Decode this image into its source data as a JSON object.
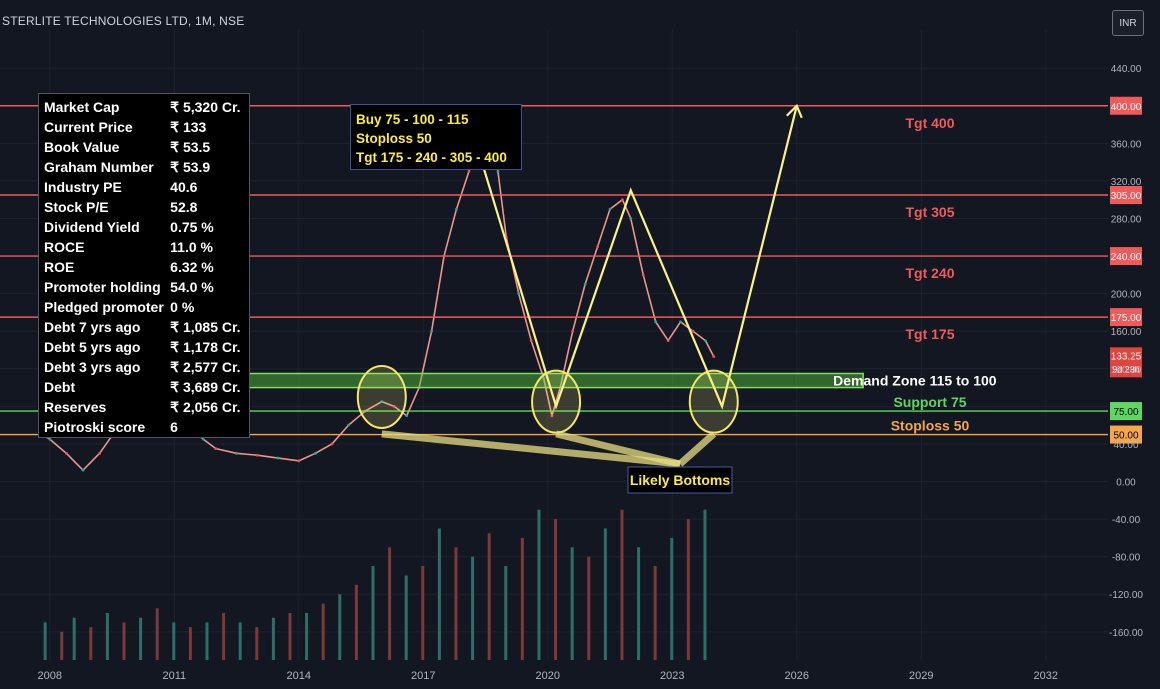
{
  "header": {
    "title": "STERLITE TECHNOLOGIES LTD, 1M, NSE",
    "currency": "INR"
  },
  "fundamentals": [
    {
      "label": "Market Cap",
      "value": "₹ 5,320 Cr."
    },
    {
      "label": "Current Price",
      "value": "₹ 133"
    },
    {
      "label": "Book Value",
      "value": "₹ 53.5"
    },
    {
      "label": "Graham Number",
      "value": "₹ 53.9"
    },
    {
      "label": "Industry PE",
      "value": "40.6"
    },
    {
      "label": "Stock P/E",
      "value": "52.8"
    },
    {
      "label": "Dividend Yield",
      "value": "0.75 %"
    },
    {
      "label": "ROCE",
      "value": "11.0 %"
    },
    {
      "label": "ROE",
      "value": "6.32 %"
    },
    {
      "label": "Promoter holding",
      "value": "54.0 %"
    },
    {
      "label": "Pledged promoter",
      "value": "0 %"
    },
    {
      "label": "Debt 7 yrs ago",
      "value": "₹ 1,085 Cr."
    },
    {
      "label": "Debt 5  yrs ago",
      "value": "₹ 1,178 Cr."
    },
    {
      "label": "Debt 3  yrs ago",
      "value": "₹ 2,577 Cr."
    },
    {
      "label": "Debt",
      "value": "₹ 3,689 Cr."
    },
    {
      "label": "Reserves",
      "value": "₹ 2,056 Cr."
    },
    {
      "label": "Piotroski score",
      "value": "6"
    }
  ],
  "trade_plan": {
    "line1": "Buy 75 - 100 - 115",
    "line2": "Stoploss 50",
    "line3": "Tgt 175 - 240 - 305 - 400"
  },
  "chart_data": {
    "type": "line",
    "title": "STERLITE TECHNOLOGIES LTD, 1M, NSE",
    "x_ticks": [
      2008,
      2011,
      2014,
      2017,
      2020,
      2023,
      2026,
      2029,
      2032
    ],
    "x_range": [
      2006.8,
      2033.5
    ],
    "y_ticks": [
      440,
      400,
      360,
      320,
      280,
      240,
      200,
      160,
      120,
      80,
      40,
      0,
      -40,
      -80,
      -120,
      -160
    ],
    "y_tick_labels": [
      "440.00",
      "400.00",
      "360.00",
      "320.00",
      "280.00",
      "240.00",
      "200.00",
      "160.00",
      "120.00",
      "80.00",
      "40.00",
      "0.00",
      "-40.00",
      "-80.00",
      "-120.00",
      "-160.00"
    ],
    "y_range": [
      -190,
      470
    ],
    "price_series": {
      "name": "",
      "x": [
        2007.75,
        2008.0,
        2008.4,
        2008.8,
        2009.2,
        2009.6,
        2010.0,
        2010.4,
        2010.7,
        2011.0,
        2011.3,
        2011.7,
        2012.0,
        2012.5,
        2013.0,
        2013.5,
        2014.0,
        2014.4,
        2014.8,
        2015.2,
        2015.6,
        2016.0,
        2016.3,
        2016.6,
        2016.9,
        2017.2,
        2017.5,
        2017.8,
        2018.1,
        2018.4,
        2018.6,
        2018.8,
        2019.0,
        2019.3,
        2019.6,
        2019.9,
        2020.1,
        2020.3,
        2020.6,
        2020.9,
        2021.2,
        2021.5,
        2021.8,
        2022.0,
        2022.3,
        2022.6,
        2022.9,
        2023.2,
        2023.5,
        2023.8,
        2024.0
      ],
      "y": [
        52,
        45,
        30,
        12,
        30,
        55,
        75,
        95,
        100,
        85,
        60,
        45,
        35,
        30,
        28,
        25,
        22,
        30,
        40,
        60,
        75,
        85,
        80,
        70,
        100,
        160,
        240,
        290,
        330,
        380,
        390,
        330,
        260,
        200,
        150,
        110,
        70,
        100,
        160,
        210,
        250,
        290,
        300,
        280,
        220,
        170,
        150,
        170,
        160,
        150,
        133
      ]
    },
    "volume_bars": {
      "x": [
        2007.9,
        2008.3,
        2008.6,
        2009.0,
        2009.4,
        2009.8,
        2010.2,
        2010.6,
        2011.0,
        2011.4,
        2011.8,
        2012.2,
        2012.6,
        2013.0,
        2013.4,
        2013.8,
        2014.2,
        2014.6,
        2015.0,
        2015.4,
        2015.8,
        2016.2,
        2016.6,
        2017.0,
        2017.4,
        2017.8,
        2018.2,
        2018.6,
        2019.0,
        2019.4,
        2019.8,
        2020.2,
        2020.6,
        2021.0,
        2021.4,
        2021.8,
        2022.2,
        2022.6,
        2023.0,
        2023.4,
        2023.8
      ],
      "y": [
        -150,
        -160,
        -145,
        -155,
        -140,
        -150,
        -145,
        -135,
        -150,
        -155,
        -150,
        -140,
        -150,
        -155,
        -145,
        -140,
        -140,
        -130,
        -120,
        -110,
        -90,
        -70,
        -100,
        -90,
        -50,
        -70,
        -80,
        -55,
        -90,
        -60,
        -30,
        -40,
        -70,
        -80,
        -50,
        -30,
        -70,
        -90,
        -60,
        -40,
        -30
      ]
    },
    "levels": [
      {
        "label": "Tgt 400",
        "value": 400,
        "price_label": "400.00",
        "color": "#f05a5a"
      },
      {
        "label": "Tgt 305",
        "value": 305,
        "price_label": "305.00",
        "color": "#f05a5a"
      },
      {
        "label": "Tgt 240",
        "value": 240,
        "price_label": "240.00",
        "color": "#f05a5a"
      },
      {
        "label": "Tgt 175",
        "value": 175,
        "price_label": "175.00",
        "color": "#f05a5a"
      },
      {
        "label": "Support 75",
        "value": 75,
        "price_label": "75.00",
        "color": "#5fd65f"
      },
      {
        "label": "Stoploss 50",
        "value": 50,
        "price_label": "50.00",
        "color": "#f5a54a"
      }
    ],
    "current_price": {
      "value": 133.25,
      "label": "133.25",
      "countdown": "9d 23h"
    },
    "demand_zone": {
      "label": "Demand Zone 115 to 100",
      "low": 100,
      "high": 115,
      "x_start": 2009.9,
      "x_end": 2027.6
    },
    "likely_bottoms_label": "Likely Bottoms",
    "projection_path": {
      "x": [
        2018.0,
        2020.2,
        2022.0,
        2024.2,
        2026.0
      ],
      "y": [
        400,
        80,
        310,
        80,
        400
      ]
    }
  }
}
